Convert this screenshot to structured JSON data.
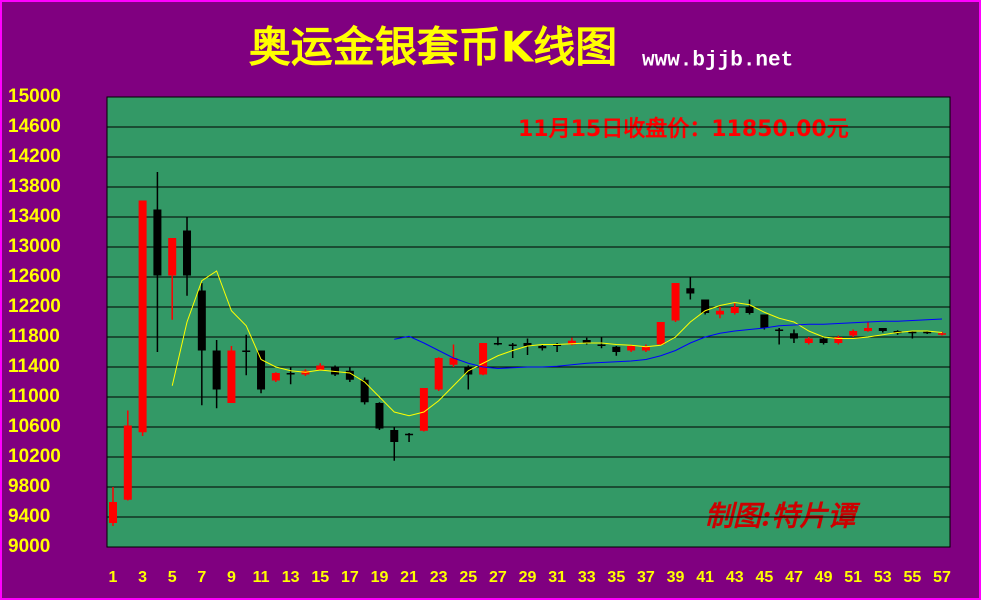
{
  "chart_data": {
    "type": "candlestick",
    "title": "奥运金银套币K线图",
    "subtitle": "www.bjjb.net",
    "annotations": [
      "11月15日收盘价：11850.00元",
      "制图:特片谭"
    ],
    "categories": [
      1,
      null,
      3,
      null,
      5,
      null,
      7,
      null,
      9,
      null,
      11,
      null,
      13,
      null,
      15,
      null,
      17,
      null,
      19,
      null,
      21,
      null,
      23,
      null,
      25,
      null,
      27,
      null,
      29,
      null,
      31,
      null,
      33,
      null,
      35,
      null,
      37,
      null,
      39,
      null,
      41,
      null,
      43,
      null,
      45,
      null,
      47,
      null,
      49,
      null,
      51,
      null,
      53,
      null,
      55,
      null,
      57
    ],
    "open": [
      9320,
      9630,
      10530,
      13500,
      12620,
      13220,
      12420,
      11620,
      10920,
      11620,
      11620,
      11220,
      11320,
      11300,
      11360,
      11400,
      11350,
      11230,
      10920,
      10560,
      10510,
      10550,
      11100,
      11430,
      11400,
      11300,
      11720,
      11700,
      11720,
      11680,
      11700,
      11700,
      11760,
      11700,
      11670,
      11620,
      11620,
      11700,
      12020,
      12450,
      12300,
      12100,
      12120,
      12200,
      12100,
      11900,
      11850,
      11720,
      11780,
      11720,
      11820,
      11880,
      11920,
      11880,
      11870,
      11870,
      11830
    ],
    "high": [
      9800,
      10820,
      13620,
      14000,
      13120,
      13400,
      12520,
      11760,
      11680,
      11830,
      11620,
      11330,
      11400,
      11370,
      11450,
      11420,
      11400,
      11260,
      10930,
      10600,
      10520,
      11120,
      11530,
      11700,
      11420,
      11720,
      11800,
      11720,
      11780,
      11700,
      11720,
      11790,
      11790,
      11800,
      11680,
      11700,
      11700,
      12000,
      12520,
      12600,
      12300,
      12200,
      12250,
      12300,
      12100,
      11920,
      11900,
      11800,
      11800,
      11820,
      11900,
      12000,
      11920,
      11890,
      11880,
      11880,
      11870
    ],
    "low": [
      9280,
      9620,
      10480,
      11600,
      12030,
      12350,
      10890,
      10850,
      10920,
      11290,
      11050,
      11200,
      11170,
      11280,
      11350,
      11280,
      11200,
      10900,
      10560,
      10150,
      10400,
      10540,
      11080,
      11400,
      11100,
      11290,
      11690,
      11520,
      11560,
      11620,
      11600,
      11690,
      11700,
      11650,
      11550,
      11600,
      11600,
      11690,
      12000,
      12300,
      12100,
      12050,
      12100,
      12100,
      11900,
      11700,
      11720,
      11700,
      11700,
      11700,
      11800,
      11870,
      11860,
      11830,
      11780,
      11840,
      11820
    ],
    "close": [
      9600,
      10620,
      13620,
      12620,
      13120,
      12620,
      11620,
      11100,
      11620,
      11600,
      11100,
      11320,
      11300,
      11350,
      11420,
      11300,
      11230,
      10930,
      10580,
      10400,
      10490,
      11120,
      11520,
      11520,
      11300,
      11720,
      11700,
      11680,
      11680,
      11650,
      11690,
      11750,
      11720,
      11690,
      11600,
      11680,
      11680,
      12000,
      12520,
      12380,
      12120,
      12150,
      12200,
      12120,
      11920,
      11880,
      11780,
      11780,
      11720,
      11800,
      11880,
      11920,
      11880,
      11850,
      11850,
      11850,
      11850
    ],
    "up_color": "#ff0000",
    "down_color": "#000000",
    "series": [
      {
        "name": null,
        "color": "#ffff00",
        "values": [
          null,
          null,
          null,
          null,
          11150,
          12000,
          12550,
          12680,
          12150,
          11950,
          11500,
          11400,
          11350,
          11330,
          11360,
          11340,
          11320,
          11200,
          11000,
          10800,
          10750,
          10800,
          10950,
          11150,
          11350,
          11450,
          11550,
          11620,
          11680,
          11700,
          11700,
          11710,
          11720,
          11720,
          11700,
          11690,
          11670,
          11690,
          11800,
          12000,
          12150,
          12220,
          12260,
          12230,
          12130,
          12050,
          12000,
          11880,
          11800,
          11780,
          11780,
          11800,
          11830,
          11860,
          11880,
          11880,
          11860
        ]
      },
      {
        "name": null,
        "color": "#0000ff",
        "values": [
          null,
          null,
          null,
          null,
          null,
          null,
          null,
          null,
          null,
          null,
          null,
          null,
          null,
          null,
          null,
          null,
          null,
          null,
          null,
          11770,
          11810,
          11720,
          11620,
          11520,
          11450,
          11400,
          11380,
          11390,
          11400,
          11400,
          11410,
          11430,
          11450,
          11460,
          11470,
          11480,
          11500,
          11550,
          11620,
          11720,
          11800,
          11850,
          11880,
          11900,
          11920,
          11950,
          11960,
          11970,
          11970,
          11980,
          11990,
          12000,
          12010,
          12010,
          12020,
          12030,
          12040
        ]
      }
    ],
    "ylim": [
      9000,
      15000
    ],
    "yticks": [
      9000,
      9400,
      9800,
      10200,
      10600,
      11000,
      11400,
      11800,
      12200,
      12600,
      13000,
      13400,
      13800,
      14200,
      14600,
      15000
    ],
    "grid": true
  }
}
